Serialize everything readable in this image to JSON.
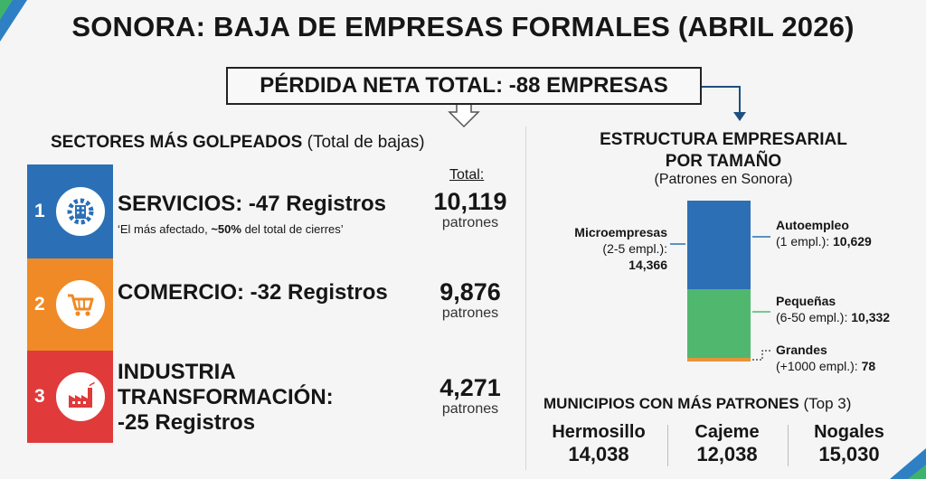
{
  "title": "SONORA: BAJA DE EMPRESAS FORMALES (ABRIL 2026)",
  "net_loss": "PÉRDIDA NETA TOTAL: -88 EMPRESAS",
  "sectors": {
    "title": "SECTORES MÁS GOLPEADOS",
    "title_sub": "(Total de bajas)",
    "total_header": "Total:",
    "items": [
      {
        "rank": "1",
        "name": "SERVICIOS: -47 Registros",
        "note_pre": "‘El más afectado, ",
        "note_bold": "~50%",
        "note_post": " del total de cierres’",
        "total": "10,119",
        "unit": "patrones",
        "color": "#2b70b6",
        "icon": "gear-building-icon"
      },
      {
        "rank": "2",
        "name": "COMERCIO: -32 Registros",
        "total": "9,876",
        "unit": "patrones",
        "color": "#ef8a26",
        "icon": "shopping-cart-icon"
      },
      {
        "rank": "3",
        "name_lines": [
          "INDUSTRIA",
          "TRANSFORMACIÓN:",
          "-25 Registros"
        ],
        "total": "4,271",
        "unit": "patrones",
        "color": "#e03a3a",
        "icon": "factory-icon"
      }
    ]
  },
  "structure": {
    "title_line1": "ESTRUCTURA EMPRESARIAL",
    "title_line2": "POR TAMAÑO",
    "subtitle": "(Patrones en Sonora)",
    "colors": {
      "blue": "#2d6fb5",
      "green": "#4fb86e",
      "orange": "#e6943a"
    },
    "segments": [
      {
        "name": "Autoempleo",
        "detail": "(1 empl.): ",
        "value": "10,629",
        "value_num": 10629
      },
      {
        "name": "Pequeñas",
        "detail": "(6-50 empl.): ",
        "value": "10,332",
        "value_num": 10332
      },
      {
        "name": "Grandes",
        "detail": "(+1000 empl.): ",
        "value": "78",
        "value_num": 78
      }
    ],
    "micro": {
      "name": "Microempresas",
      "detail": "(2-5 empl.):",
      "value": "14,366"
    }
  },
  "municipios": {
    "title": "MUNICIPIOS CON MÁS PATRONES",
    "title_sub": "(Top 3)",
    "items": [
      {
        "name": "Hermosillo",
        "value": "14,038"
      },
      {
        "name": "Cajeme",
        "value": "12,038"
      },
      {
        "name": "Nogales",
        "value": "15,030"
      }
    ]
  }
}
